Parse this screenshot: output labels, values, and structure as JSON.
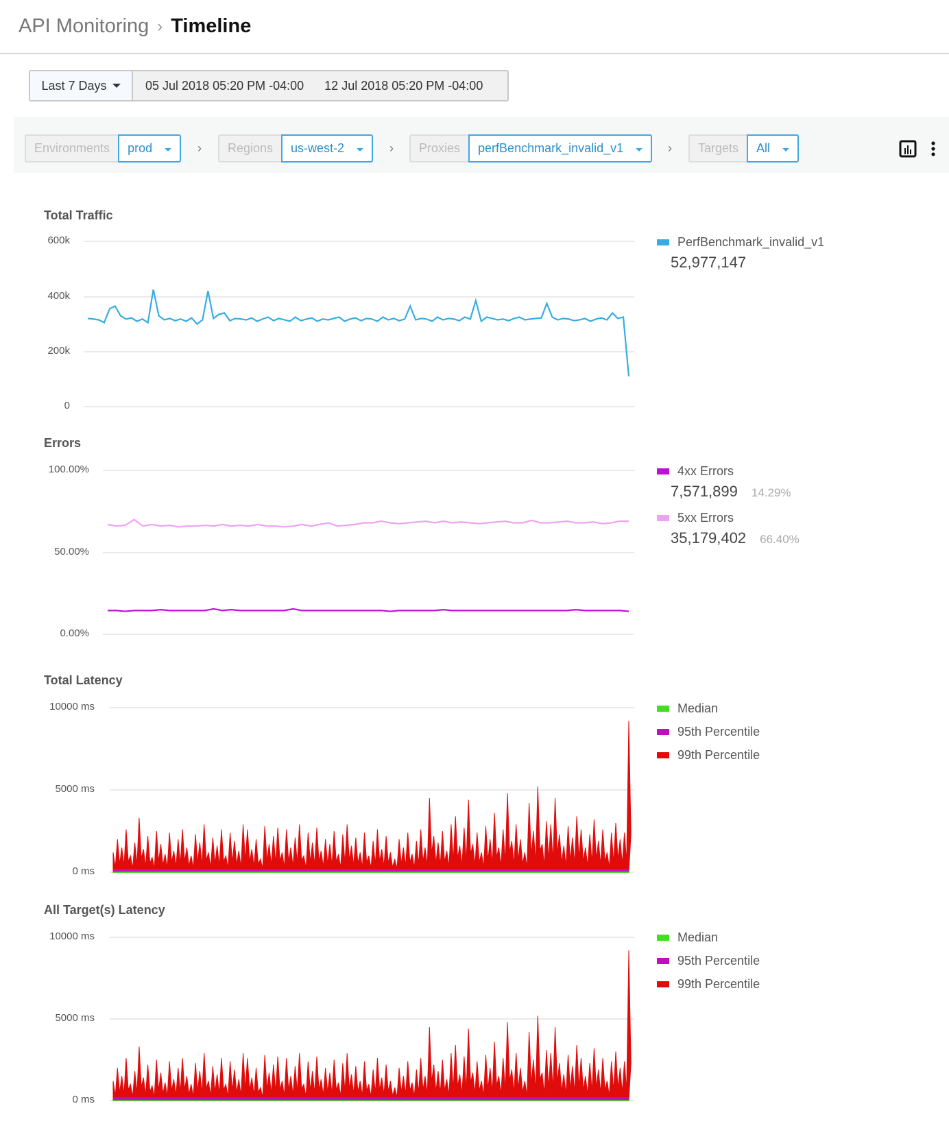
{
  "header": {
    "parent": "API Monitoring",
    "current": "Timeline"
  },
  "date_range": {
    "preset": "Last 7 Days",
    "start": "05 Jul 2018 05:20 PM -04:00",
    "end": "12 Jul 2018 05:20 PM -04:00"
  },
  "filters": [
    {
      "label": "Environments",
      "value": "prod"
    },
    {
      "label": "Regions",
      "value": "us-west-2"
    },
    {
      "label": "Proxies",
      "value": "perfBenchmark_invalid_v1"
    },
    {
      "label": "Targets",
      "value": "All"
    }
  ],
  "toolbar": {
    "icons": [
      "bar-chart-icon",
      "more-vertical-icon"
    ]
  },
  "colors": {
    "traffic": "#36ace2",
    "e4xx": "#bf10d9",
    "e5xx": "#eda3f3",
    "median": "#44dd22",
    "p95": "#c00fbf",
    "p99": "#e00c0c",
    "accent": "#3ea8e5"
  },
  "chart_data": [
    {
      "type": "line",
      "title": "Total Traffic",
      "ylim": [
        0,
        600000
      ],
      "yticks": [
        "600k",
        "400k",
        "200k",
        "0"
      ],
      "grid": true,
      "legend": "right",
      "series": [
        {
          "name": "PerfBenchmark_invalid_v1",
          "total": "52,977,147",
          "values": [
            320000,
            318000,
            315000,
            305000,
            355000,
            365000,
            330000,
            318000,
            322000,
            310000,
            318000,
            305000,
            425000,
            330000,
            315000,
            320000,
            312000,
            318000,
            310000,
            322000,
            300000,
            315000,
            420000,
            320000,
            335000,
            340000,
            312000,
            320000,
            318000,
            315000,
            322000,
            310000,
            318000,
            325000,
            312000,
            320000,
            315000,
            310000,
            325000,
            312000,
            318000,
            322000,
            310000,
            318000,
            315000,
            320000,
            325000,
            310000,
            318000,
            322000,
            312000,
            320000,
            318000,
            310000,
            325000,
            315000,
            320000,
            312000,
            318000,
            365000,
            315000,
            320000,
            318000,
            310000,
            325000,
            315000,
            320000,
            318000,
            312000,
            325000,
            318000,
            385000,
            310000,
            325000,
            320000,
            315000,
            318000,
            312000,
            320000,
            325000,
            315000,
            318000,
            320000,
            322000,
            375000,
            325000,
            315000,
            320000,
            318000,
            312000,
            315000,
            320000,
            310000,
            318000,
            322000,
            315000,
            340000,
            320000,
            325000,
            110000
          ]
        }
      ]
    },
    {
      "type": "line",
      "title": "Errors",
      "ylim": [
        0,
        100
      ],
      "yticks": [
        "100.00%",
        "50.00%",
        "0.00%"
      ],
      "grid": true,
      "legend": "right",
      "series": [
        {
          "name": "4xx Errors",
          "total": "7,571,899",
          "percent": "14.29%",
          "values": [
            14.5,
            14.5,
            14,
            14.5,
            14.5,
            14.5,
            15,
            14.5,
            14.5,
            14.5,
            14.5,
            14.5,
            15.5,
            14.5,
            15,
            14.5,
            14.5,
            14.5,
            14.5,
            14.5,
            14.5,
            15.5,
            14.5,
            14.5,
            14.5,
            14.5,
            14.5,
            14.5,
            14.5,
            14.5,
            14.5,
            14.5,
            14,
            14.5,
            14.5,
            14.5,
            14.5,
            14.5,
            15,
            14.5,
            14.5,
            14.5,
            14.5,
            14.5,
            14.5,
            14.5,
            14.5,
            14.5,
            14.5,
            14.5,
            14.5,
            14.5,
            14.5,
            15,
            14.5,
            14.5,
            14.5,
            14.5,
            14.5,
            14
          ]
        },
        {
          "name": "5xx Errors",
          "total": "35,179,402",
          "percent": "66.40%",
          "values": [
            67,
            66,
            66.5,
            70,
            66,
            67,
            66,
            66.5,
            65.5,
            66,
            66,
            66.5,
            66,
            67,
            66,
            66.5,
            66,
            67,
            66,
            66,
            65.5,
            66,
            67,
            66,
            67,
            68,
            66,
            66.5,
            67,
            68,
            68,
            69,
            68,
            67.5,
            68,
            68.5,
            69,
            68,
            69,
            68,
            68.5,
            68,
            67.5,
            68,
            68.5,
            69,
            68,
            68,
            69.5,
            68,
            68,
            68.5,
            69,
            68,
            68,
            68.5,
            67.5,
            68,
            69,
            69
          ]
        }
      ]
    },
    {
      "type": "area",
      "title": "Total Latency",
      "ylim": [
        0,
        10000
      ],
      "yticks": [
        "10000 ms",
        "5000 ms",
        "0 ms"
      ],
      "grid": true,
      "legend": "right",
      "series": [
        {
          "name": "Median",
          "values": [
            30
          ]
        },
        {
          "name": "95th Percentile",
          "values": [
            200
          ]
        },
        {
          "name": "99th Percentile",
          "values": [
            1200,
            2000,
            1500,
            2600,
            1000,
            1800,
            3300,
            1400,
            2200,
            900,
            2500,
            1700,
            1100,
            2400,
            1300,
            2000,
            2600,
            1500,
            1000,
            2300,
            1800,
            2900,
            1200,
            2100,
            1600,
            2600,
            1000,
            2400,
            1900,
            1300,
            2900,
            2600,
            1400,
            2000,
            800,
            2800,
            1700,
            2200,
            2700,
            1200,
            2600,
            1500,
            2100,
            2900,
            1000,
            2400,
            1800,
            2700,
            1300,
            2000,
            1700,
            2500,
            1100,
            2300,
            2900,
            1600,
            2100,
            1200,
            2400,
            1000,
            1900,
            2600,
            1400,
            2200,
            1200,
            800,
            2000,
            1500,
            2400,
            1100,
            1900,
            2600,
            1500,
            4500,
            2200,
            1800,
            2500,
            1300,
            2900,
            3400,
            1600,
            2700,
            4400,
            1700,
            2400,
            1200,
            2800,
            2000,
            3600,
            1500,
            2600,
            4800,
            1900,
            2900,
            2000,
            1200,
            4200,
            2500,
            5200,
            1700,
            3100,
            2900,
            4500,
            2300,
            1600,
            2800,
            2100,
            3400,
            2600,
            1500,
            2300,
            3200,
            1900,
            2600,
            1200,
            2400,
            3000,
            2000,
            2400,
            9200
          ]
        }
      ]
    },
    {
      "type": "area",
      "title": "All Target(s) Latency",
      "ylim": [
        0,
        10000
      ],
      "yticks": [
        "10000 ms",
        "5000 ms",
        "0 ms"
      ],
      "grid": true,
      "legend": "right",
      "series": [
        {
          "name": "Median",
          "values": [
            30
          ]
        },
        {
          "name": "95th Percentile",
          "values": [
            200
          ]
        },
        {
          "name": "99th Percentile",
          "values": [
            1200,
            2000,
            1500,
            2600,
            1000,
            1800,
            3300,
            1400,
            2200,
            900,
            2500,
            1700,
            1100,
            2400,
            1300,
            2000,
            2600,
            1500,
            1000,
            2300,
            1800,
            2900,
            1200,
            2100,
            1600,
            2600,
            1000,
            2400,
            1900,
            1300,
            2900,
            2600,
            1400,
            2000,
            800,
            2800,
            1700,
            2200,
            2700,
            1200,
            2600,
            1500,
            2100,
            2900,
            1000,
            2400,
            1800,
            2700,
            1300,
            2000,
            1700,
            2500,
            1100,
            2300,
            2900,
            1600,
            2100,
            1200,
            2400,
            1000,
            1900,
            2600,
            1400,
            2200,
            1200,
            800,
            2000,
            1500,
            2400,
            1100,
            1900,
            2600,
            1500,
            4500,
            2200,
            1800,
            2500,
            1300,
            2900,
            3400,
            1600,
            2700,
            4400,
            1700,
            2400,
            1200,
            2800,
            2000,
            3600,
            1500,
            2600,
            4800,
            1900,
            2900,
            2000,
            1200,
            4200,
            2500,
            5200,
            1700,
            3100,
            2900,
            4500,
            2300,
            1600,
            2800,
            2100,
            3400,
            2600,
            1500,
            2300,
            3200,
            1900,
            2600,
            1200,
            2400,
            3000,
            2000,
            2400,
            9200
          ]
        }
      ]
    }
  ]
}
